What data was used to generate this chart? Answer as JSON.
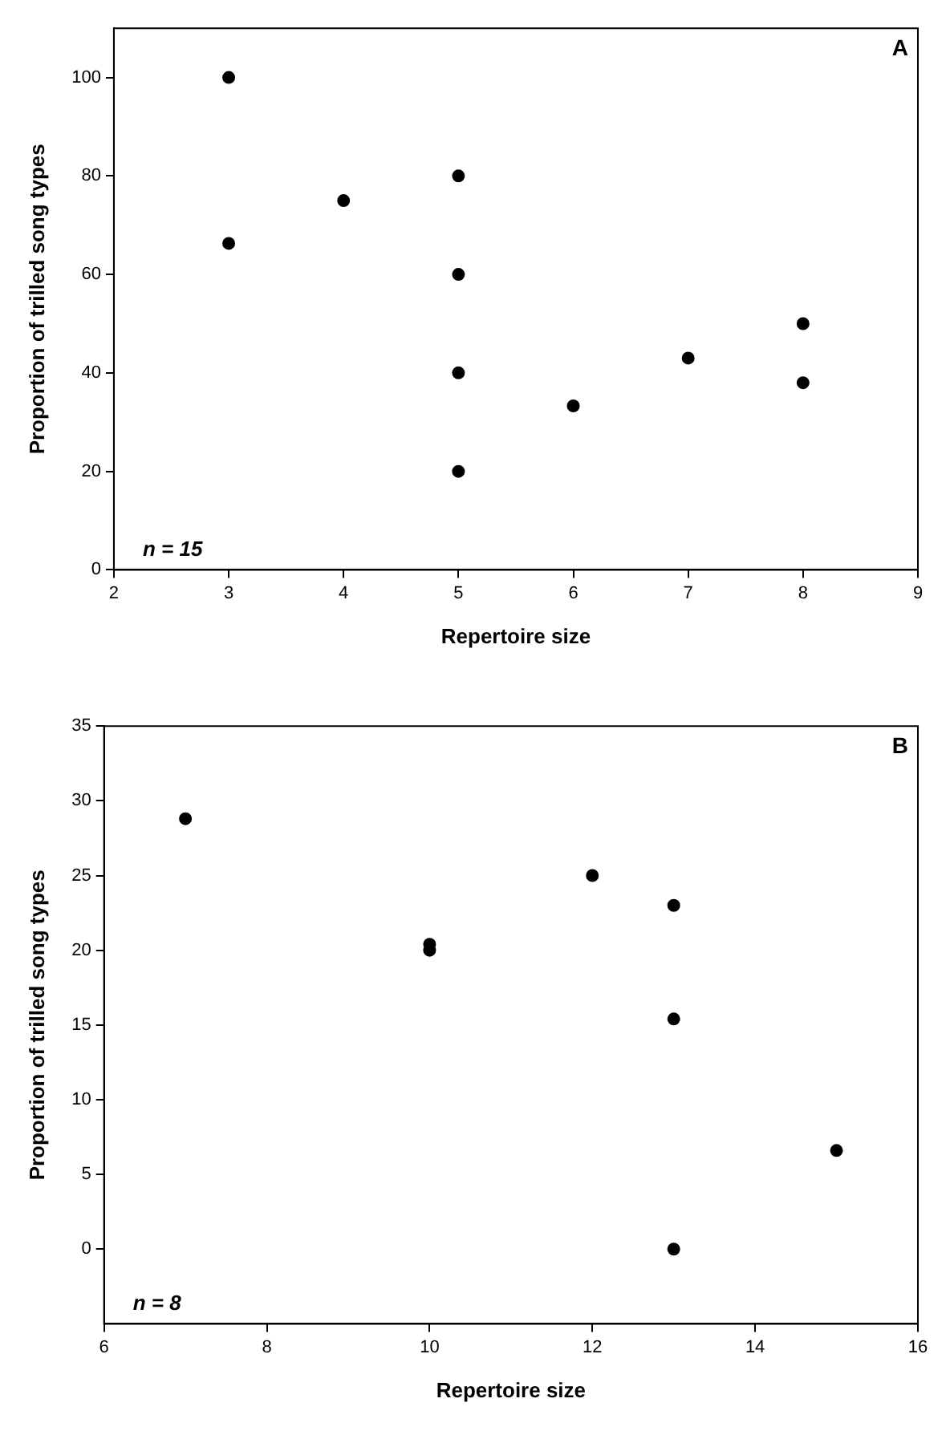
{
  "chart_data": [
    {
      "type": "scatter",
      "xlabel": "Repertoire size",
      "ylabel": "Proportion of trilled song types",
      "annotations": [
        "A",
        "n = 15"
      ],
      "marker": "circle",
      "grid": false,
      "legend": false,
      "xlim": [
        2,
        9
      ],
      "xticks": [
        2,
        3,
        4,
        5,
        6,
        7,
        8,
        9
      ],
      "ylim": [
        0,
        110
      ],
      "yticks": [
        0,
        20,
        40,
        60,
        80,
        100
      ],
      "series": [
        {
          "color": "#000000",
          "x": [
            3,
            3,
            4,
            5,
            5,
            5,
            5,
            6,
            7,
            8,
            8
          ],
          "values": [
            100,
            66.3,
            75,
            80,
            60,
            40,
            20,
            33.3,
            43,
            50,
            38
          ]
        }
      ]
    },
    {
      "type": "scatter",
      "xlabel": "Repertoire size",
      "ylabel": "Proportion of trilled song types",
      "annotations": [
        "B",
        "n = 8"
      ],
      "marker": "circle",
      "grid": false,
      "legend": false,
      "xlim": [
        6,
        16
      ],
      "xticks": [
        6,
        8,
        10,
        12,
        14,
        16
      ],
      "ylim": [
        -5,
        35
      ],
      "yticks": [
        0,
        5,
        10,
        15,
        20,
        25,
        30,
        35
      ],
      "series": [
        {
          "color": "#000000",
          "x": [
            7,
            10,
            10,
            12,
            13,
            13,
            13,
            15
          ],
          "values": [
            28.8,
            20.4,
            20,
            25,
            23,
            15.4,
            0,
            6.6
          ]
        }
      ]
    }
  ]
}
